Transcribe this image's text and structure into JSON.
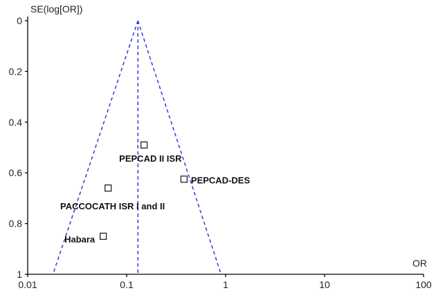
{
  "chart_data": {
    "type": "scatter",
    "title": "",
    "xlabel": "OR",
    "ylabel": "SE(log[OR])",
    "x_scale": "log",
    "y_inverted": true,
    "xlim": [
      0.01,
      100
    ],
    "ylim": [
      0,
      1
    ],
    "x_ticks": [
      {
        "value": 0.01,
        "label": "0.01"
      },
      {
        "value": 0.1,
        "label": "0.1"
      },
      {
        "value": 1,
        "label": "1"
      },
      {
        "value": 10,
        "label": "10"
      },
      {
        "value": 100,
        "label": "100"
      }
    ],
    "y_ticks": [
      {
        "value": 0,
        "label": "0"
      },
      {
        "value": 0.2,
        "label": "0.2"
      },
      {
        "value": 0.4,
        "label": "0.4"
      },
      {
        "value": 0.6,
        "label": "0.6"
      },
      {
        "value": 0.8,
        "label": "0.8"
      },
      {
        "value": 1,
        "label": "1"
      }
    ],
    "points": [
      {
        "name": "PEPCAD II ISR",
        "or": 0.15,
        "se": 0.49
      },
      {
        "name": "PEPCAD-DES",
        "or": 0.38,
        "se": 0.625
      },
      {
        "name": "PACCOCATH ISR I and II",
        "or": 0.065,
        "se": 0.66
      },
      {
        "name": "Habara",
        "or": 0.058,
        "se": 0.85
      }
    ],
    "pooled_or": 0.13,
    "funnel_bounds_at_se_1": [
      0.018,
      0.9
    ],
    "grid": false,
    "legend": "none"
  }
}
